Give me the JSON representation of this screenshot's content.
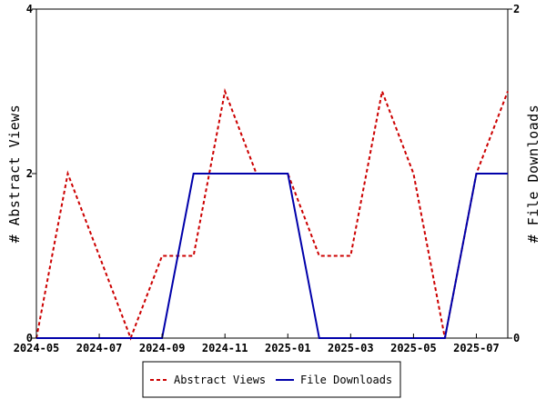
{
  "chart_data": {
    "type": "line",
    "title": "",
    "xlabel": "",
    "ylabel_left": "# Abstract Views",
    "ylabel_right": "# File Downloads",
    "x": [
      "2024-05",
      "2024-06",
      "2024-07",
      "2024-08",
      "2024-09",
      "2024-10",
      "2024-11",
      "2024-12",
      "2025-01",
      "2025-02",
      "2025-03",
      "2025-04",
      "2025-05",
      "2025-06",
      "2025-07",
      "2025-08"
    ],
    "x_ticks": [
      "2024-05",
      "2024-07",
      "2024-09",
      "2024-11",
      "2025-01",
      "2025-03",
      "2025-05",
      "2025-07"
    ],
    "ylim_left": [
      0,
      4
    ],
    "yticks_left": [
      "0",
      "2",
      "4"
    ],
    "ylim_right": [
      0,
      2
    ],
    "yticks_right": [
      "0",
      "2"
    ],
    "series": [
      {
        "name": "Abstract Views",
        "axis": "left",
        "color": "#cc0000",
        "style": "dashed",
        "values": [
          0,
          2,
          1,
          0,
          1,
          1,
          3,
          2,
          2,
          1,
          1,
          3,
          2,
          0,
          2,
          3
        ]
      },
      {
        "name": "File Downloads",
        "axis": "right",
        "color": "#0000aa",
        "style": "solid",
        "values": [
          0,
          0,
          0,
          0,
          0,
          1,
          1,
          1,
          1,
          0,
          0,
          0,
          0,
          0,
          1,
          1
        ]
      }
    ],
    "grid": false,
    "legend_position": "bottom"
  }
}
